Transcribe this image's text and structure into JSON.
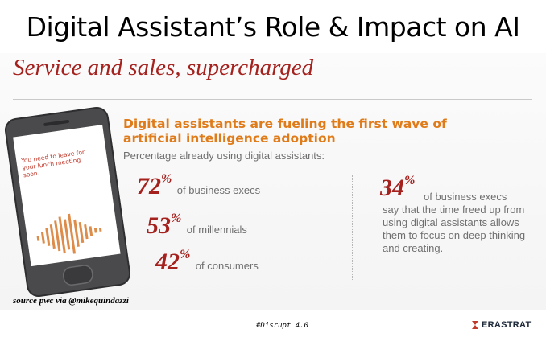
{
  "slide": {
    "title": "Digital Assistant’s Role & Impact on AI"
  },
  "banner": {
    "subtitle": "Service and sales, supercharged"
  },
  "phone": {
    "message": "You need to leave for your lunch meeting soon."
  },
  "infographic": {
    "headline": "Digital assistants are fueling the first wave of artificial intelligence adoption",
    "intro": "Percentage already using digital assistants:",
    "stats": [
      {
        "value": "72",
        "unit": "%",
        "label": "of business execs"
      },
      {
        "value": "53",
        "unit": "%",
        "label": "of millennials"
      },
      {
        "value": "42",
        "unit": "%",
        "label": "of consumers"
      }
    ],
    "callout": {
      "value": "34",
      "unit": "%",
      "label": "of business execs",
      "text": "say that the time freed up from using digital assistants allows them to focus on deep thinking and creating."
    }
  },
  "footer": {
    "source": "source pwc via @mikequindazzi",
    "hashtag": "#Disrupt 4.0",
    "logo_text": "ERASTRAT"
  },
  "colors": {
    "accent_red": "#a4211e",
    "accent_orange": "#e07b1a",
    "body_gray": "#6f6f6f"
  },
  "icons": {
    "phone": "smartphone-illustration",
    "logo": "erastrat-logo-icon"
  }
}
